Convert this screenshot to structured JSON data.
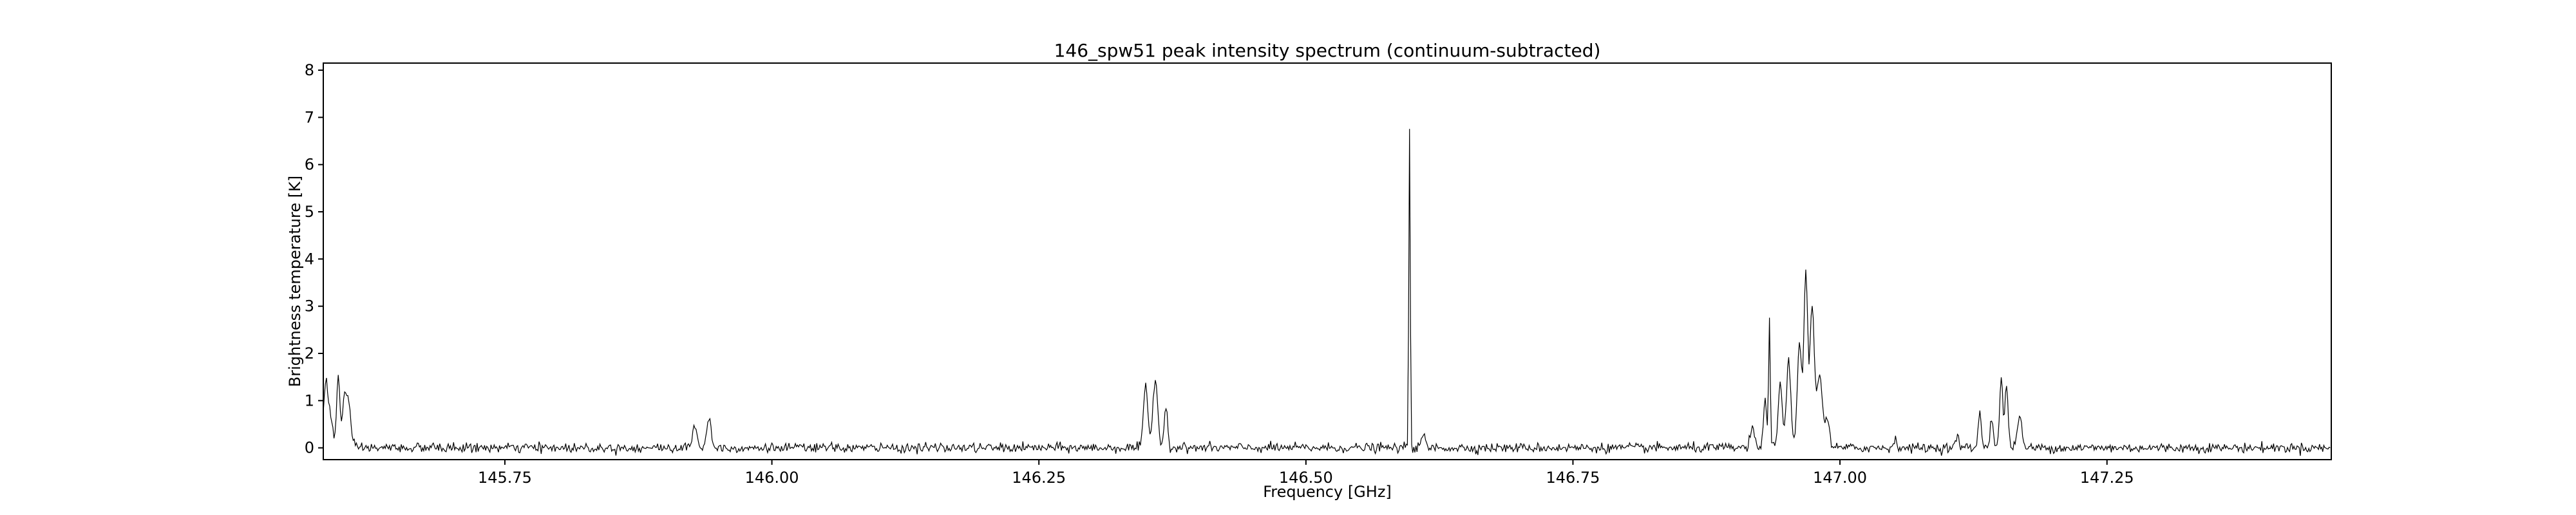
{
  "chart_data": {
    "type": "line",
    "title": "146_spw51 peak intensity spectrum (continuum-subtracted)",
    "xlabel": "Frequency [GHz]",
    "ylabel": "Brightness temperature [K]",
    "xlim": [
      145.58,
      147.46
    ],
    "ylim": [
      -0.25,
      8.15
    ],
    "xticks": [
      145.75,
      146.0,
      146.25,
      146.5,
      146.75,
      147.0,
      147.25
    ],
    "xtick_labels": [
      "145.75",
      "146.00",
      "146.25",
      "146.50",
      "146.75",
      "147.00",
      "147.25"
    ],
    "yticks": [
      0,
      1,
      2,
      3,
      4,
      5,
      6,
      7,
      8
    ],
    "ytick_labels": [
      "0",
      "1",
      "2",
      "3",
      "4",
      "5",
      "6",
      "7",
      "8"
    ],
    "grid": false,
    "series": [
      {
        "color": "#000000",
        "x_start": 145.58,
        "x_step": 0.001,
        "noise_rms": 0.05,
        "peaks": [
          {
            "center": 145.582,
            "amplitude": 1.2,
            "width": 0.002
          },
          {
            "center": 145.586,
            "amplitude": 0.7,
            "width": 0.0025
          },
          {
            "center": 145.594,
            "amplitude": 1.5,
            "width": 0.0015
          },
          {
            "center": 145.6,
            "amplitude": 1.1,
            "width": 0.002
          },
          {
            "center": 145.604,
            "amplitude": 0.8,
            "width": 0.002
          },
          {
            "center": 145.928,
            "amplitude": 0.5,
            "width": 0.002
          },
          {
            "center": 145.941,
            "amplitude": 0.65,
            "width": 0.002
          },
          {
            "center": 146.35,
            "amplitude": 1.3,
            "width": 0.002
          },
          {
            "center": 146.359,
            "amplitude": 1.5,
            "width": 0.0022
          },
          {
            "center": 146.369,
            "amplitude": 0.95,
            "width": 0.0015
          },
          {
            "center": 146.597,
            "amplitude": 6.75,
            "width": 0.0007
          },
          {
            "center": 146.61,
            "amplitude": 0.3,
            "width": 0.0015
          },
          {
            "center": 146.918,
            "amplitude": 0.4,
            "width": 0.002
          },
          {
            "center": 146.93,
            "amplitude": 1.0,
            "width": 0.0015
          },
          {
            "center": 146.934,
            "amplitude": 2.75,
            "width": 0.0008
          },
          {
            "center": 146.944,
            "amplitude": 1.3,
            "width": 0.002
          },
          {
            "center": 146.952,
            "amplitude": 1.85,
            "width": 0.002
          },
          {
            "center": 146.962,
            "amplitude": 2.2,
            "width": 0.002
          },
          {
            "center": 146.968,
            "amplitude": 3.7,
            "width": 0.0018
          },
          {
            "center": 146.974,
            "amplitude": 3.0,
            "width": 0.002
          },
          {
            "center": 146.981,
            "amplitude": 1.6,
            "width": 0.0025
          },
          {
            "center": 146.988,
            "amplitude": 0.6,
            "width": 0.002
          },
          {
            "center": 147.052,
            "amplitude": 0.15,
            "width": 0.002
          },
          {
            "center": 147.11,
            "amplitude": 0.25,
            "width": 0.0015
          },
          {
            "center": 147.131,
            "amplitude": 0.75,
            "width": 0.0015
          },
          {
            "center": 147.142,
            "amplitude": 0.65,
            "width": 0.0015
          },
          {
            "center": 147.151,
            "amplitude": 1.45,
            "width": 0.0015
          },
          {
            "center": 147.156,
            "amplitude": 1.3,
            "width": 0.0015
          },
          {
            "center": 147.168,
            "amplitude": 0.7,
            "width": 0.002
          }
        ]
      }
    ]
  }
}
